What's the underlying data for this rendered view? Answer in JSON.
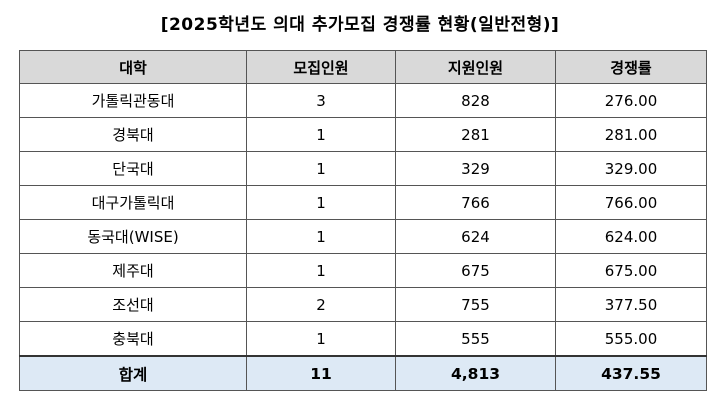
{
  "title": "[2025학년도 의대 추가모집 경쟁률 현황(일반전형)]",
  "headers": [
    "대학",
    "모집인원",
    "지원인원",
    "경쟁률"
  ],
  "rows": [
    {
      "school": "가톨릭관동대",
      "quota": "3",
      "applicants": "828",
      "ratio": "276.00"
    },
    {
      "school": "경북대",
      "quota": "1",
      "applicants": "281",
      "ratio": "281.00"
    },
    {
      "school": "단국대",
      "quota": "1",
      "applicants": "329",
      "ratio": "329.00"
    },
    {
      "school": "대구가톨릭대",
      "quota": "1",
      "applicants": "766",
      "ratio": "766.00"
    },
    {
      "school": "동국대(WISE)",
      "quota": "1",
      "applicants": "624",
      "ratio": "624.00"
    },
    {
      "school": "제주대",
      "quota": "1",
      "applicants": "675",
      "ratio": "675.00"
    },
    {
      "school": "조선대",
      "quota": "2",
      "applicants": "755",
      "ratio": "377.50"
    },
    {
      "school": "충북대",
      "quota": "1",
      "applicants": "555",
      "ratio": "555.00"
    }
  ],
  "total": {
    "label": "합계",
    "quota": "11",
    "applicants": "4,813",
    "ratio": "437.55"
  },
  "colors": {
    "header_bg": "#d9d9d9",
    "total_bg": "#dde9f5",
    "border": "#555555"
  }
}
